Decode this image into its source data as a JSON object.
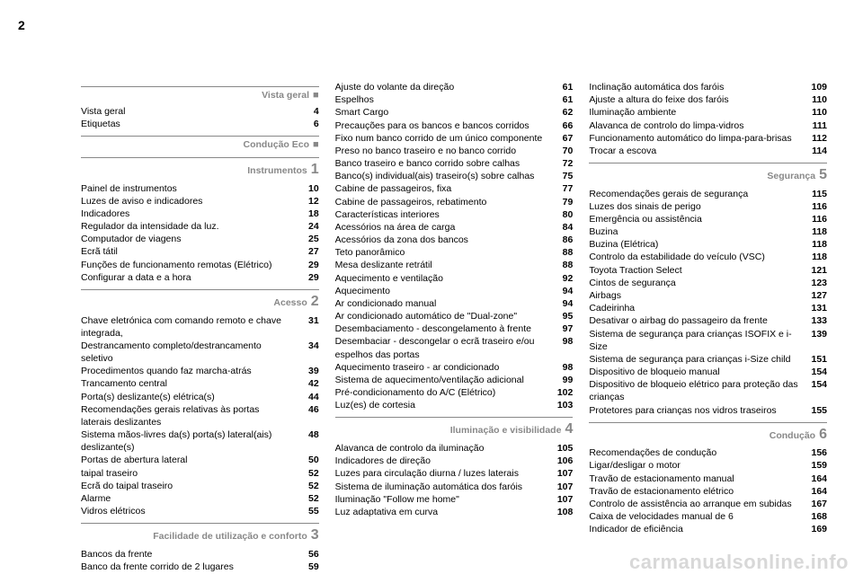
{
  "page_number": "2",
  "watermark": "carmanualsonline.info",
  "columns": [
    {
      "sections": [
        {
          "title": "Vista geral",
          "marker": "■",
          "markerType": "bullet",
          "entries": [
            {
              "label": "Vista geral",
              "page": "4"
            },
            {
              "label": "Etiquetas",
              "page": "6"
            }
          ]
        },
        {
          "title": "Condução Eco",
          "marker": "■",
          "markerType": "bullet",
          "entries": []
        },
        {
          "title": "Instrumentos",
          "marker": "1",
          "markerType": "num",
          "entries": [
            {
              "label": "Painel de instrumentos",
              "page": "10"
            },
            {
              "label": "Luzes de aviso e indicadores",
              "page": "12"
            },
            {
              "label": "Indicadores",
              "page": "18"
            },
            {
              "label": "Regulador da intensidade da luz.",
              "page": "24"
            },
            {
              "label": "Computador de viagens",
              "page": "25"
            },
            {
              "label": "Ecrã tátil",
              "page": "27"
            },
            {
              "label": "Funções de funcionamento remotas (Elétrico)",
              "page": "29"
            },
            {
              "label": "Configurar a data e a hora",
              "page": "29"
            }
          ]
        },
        {
          "title": "Acesso",
          "marker": "2",
          "markerType": "num",
          "entries": [
            {
              "label": "Chave eletrónica com comando remoto e chave integrada,",
              "page": "31"
            },
            {
              "label": "Destrancamento completo/destrancamento seletivo",
              "page": "34"
            },
            {
              "label": "Procedimentos quando faz marcha-atrás",
              "page": "39"
            },
            {
              "label": "Trancamento central",
              "page": "42"
            },
            {
              "label": "Porta(s) deslizante(s) elétrica(s)",
              "page": "44"
            },
            {
              "label": "Recomendações gerais relativas às portas laterais deslizantes",
              "page": "46"
            },
            {
              "label": "Sistema mãos-livres da(s) porta(s) lateral(ais) deslizante(s)",
              "page": "48"
            },
            {
              "label": "Portas de abertura lateral",
              "page": "50"
            },
            {
              "label": "taipal traseiro",
              "page": "52"
            },
            {
              "label": "Ecrã do taipal traseiro",
              "page": "52"
            },
            {
              "label": "Alarme",
              "page": "52"
            },
            {
              "label": "Vidros elétricos",
              "page": "55"
            }
          ]
        },
        {
          "title": "Facilidade de utilização e conforto",
          "marker": "3",
          "markerType": "num",
          "entries": [
            {
              "label": "Bancos da frente",
              "page": "56"
            },
            {
              "label": "Banco da frente corrido de 2 lugares",
              "page": "59"
            }
          ]
        }
      ]
    },
    {
      "sections": [
        {
          "title": "",
          "marker": "",
          "markerType": "none",
          "entries": [
            {
              "label": "Ajuste do volante da direção",
              "page": "61"
            },
            {
              "label": "Espelhos",
              "page": "61"
            },
            {
              "label": "Smart Cargo",
              "page": "62"
            },
            {
              "label": "Precauções para os bancos e bancos corridos",
              "page": "66"
            },
            {
              "label": "Fixo num banco corrido de um único componente",
              "page": "67"
            },
            {
              "label": "Preso no banco traseiro e no banco corrido",
              "page": "70"
            },
            {
              "label": "Banco traseiro e banco corrido sobre calhas",
              "page": "72"
            },
            {
              "label": "Banco(s) individual(ais) traseiro(s) sobre calhas",
              "page": "75"
            },
            {
              "label": "Cabine de passageiros, fixa",
              "page": "77"
            },
            {
              "label": "Cabine de passageiros, rebatimento",
              "page": "79"
            },
            {
              "label": "Características interiores",
              "page": "80"
            },
            {
              "label": "Acessórios na área de carga",
              "page": "84"
            },
            {
              "label": "Acessórios da zona dos bancos",
              "page": "86"
            },
            {
              "label": "Teto panorâmico",
              "page": "88"
            },
            {
              "label": "Mesa deslizante retrátil",
              "page": "88"
            },
            {
              "label": "Aquecimento e ventilação",
              "page": "92"
            },
            {
              "label": "Aquecimento",
              "page": "94"
            },
            {
              "label": "Ar condicionado manual",
              "page": "94"
            },
            {
              "label": "Ar condicionado automático de \"Dual-zone\"",
              "page": "95"
            },
            {
              "label": "Desembaciamento - descongelamento à frente",
              "page": "97"
            },
            {
              "label": "Desembaciar - descongelar o ecrã traseiro e/ou espelhos das portas",
              "page": "98"
            },
            {
              "label": "Aquecimento traseiro - ar condicionado",
              "page": "98"
            },
            {
              "label": "Sistema de aquecimento/ventilação adicional",
              "page": "99"
            },
            {
              "label": "Pré-condicionamento do A/C (Elétrico)",
              "page": "102"
            },
            {
              "label": "Luz(es) de cortesia",
              "page": "103"
            }
          ]
        },
        {
          "title": "Iluminação e visibilidade",
          "marker": "4",
          "markerType": "num",
          "entries": [
            {
              "label": "Alavanca de controlo da iluminação",
              "page": "105"
            },
            {
              "label": "Indicadores de direção",
              "page": "106"
            },
            {
              "label": "Luzes para circulação diurna / luzes laterais",
              "page": "107"
            },
            {
              "label": "Sistema de iluminação automática dos faróis",
              "page": "107"
            },
            {
              "label": "Iluminação \"Follow me home\"",
              "page": "107"
            },
            {
              "label": "Luz adaptativa em curva",
              "page": "108"
            }
          ]
        }
      ]
    },
    {
      "sections": [
        {
          "title": "",
          "marker": "",
          "markerType": "none",
          "entries": [
            {
              "label": "Inclinação automática dos faróis",
              "page": "109"
            },
            {
              "label": "Ajuste a altura do feixe dos faróis",
              "page": "110"
            },
            {
              "label": "Iluminação ambiente",
              "page": "110"
            },
            {
              "label": "Alavanca de controlo do limpa-vidros",
              "page": "111"
            },
            {
              "label": "Funcionamento automático do limpa-para-brisas",
              "page": "112"
            },
            {
              "label": "Trocar a escova",
              "page": "114"
            }
          ]
        },
        {
          "title": "Segurança",
          "marker": "5",
          "markerType": "num",
          "entries": [
            {
              "label": "Recomendações gerais de segurança",
              "page": "115"
            },
            {
              "label": "Luzes dos sinais de perigo",
              "page": "116"
            },
            {
              "label": "Emergência ou assistência",
              "page": "116"
            },
            {
              "label": "Buzina",
              "page": "118"
            },
            {
              "label": "Buzina (Elétrica)",
              "page": "118"
            },
            {
              "label": "Controlo da estabilidade do veículo (VSC)",
              "page": "118"
            },
            {
              "label": "Toyota Traction Select",
              "page": "121"
            },
            {
              "label": "Cintos de segurança",
              "page": "123"
            },
            {
              "label": "Airbags",
              "page": "127"
            },
            {
              "label": "Cadeirinha",
              "page": "131"
            },
            {
              "label": "Desativar o airbag do passageiro da frente",
              "page": "133"
            },
            {
              "label": "Sistema de segurança para crianças ISOFIX e i-Size",
              "page": "139"
            },
            {
              "label": "Sistema de segurança para crianças i-Size child",
              "page": "151"
            },
            {
              "label": "Dispositivo de bloqueio manual",
              "page": "154"
            },
            {
              "label": "Dispositivo de bloqueio elétrico para proteção das crianças",
              "page": "154"
            },
            {
              "label": "Protetores para crianças nos vidros traseiros",
              "page": "155"
            }
          ]
        },
        {
          "title": "Condução",
          "marker": "6",
          "markerType": "num",
          "entries": [
            {
              "label": "Recomendações de condução",
              "page": "156"
            },
            {
              "label": "Ligar/desligar o motor",
              "page": "159"
            },
            {
              "label": "Travão de estacionamento manual",
              "page": "164"
            },
            {
              "label": "Travão de estacionamento elétrico",
              "page": "164"
            },
            {
              "label": "Controlo de assistência ao arranque em subidas",
              "page": "167"
            },
            {
              "label": "Caixa de velocidades manual de 6",
              "page": "168"
            },
            {
              "label": "Indicador de eficiência",
              "page": "169"
            }
          ]
        }
      ]
    }
  ]
}
